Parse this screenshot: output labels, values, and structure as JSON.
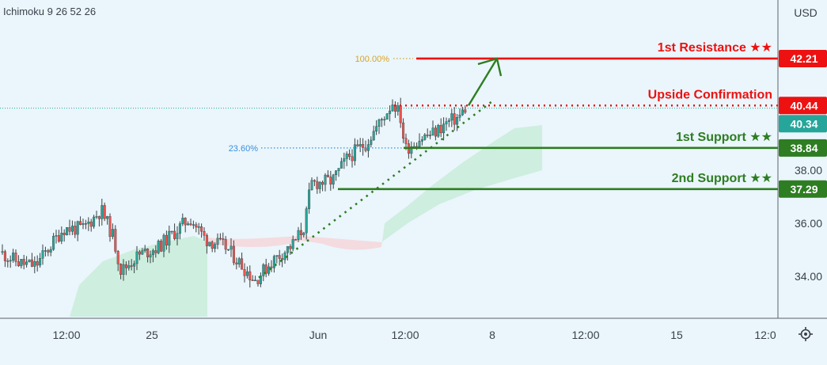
{
  "indicator_label": "Ichimoku 9 26 52 26",
  "currency": "USD",
  "colors": {
    "background": "#eaf6fb",
    "bull": "#26a69a",
    "bear": "#ef5350",
    "resistance": "#ee1111",
    "support": "#2e7d22",
    "price_line": "#26a69a",
    "cloud_bull": "#c9ecd9",
    "cloud_bear": "#f6d4d8",
    "fib_100": "#d8a329",
    "fib_236": "#3b8ede"
  },
  "chart_data": {
    "type": "candlestick",
    "title": "",
    "ylim": [
      32.8,
      45.0
    ],
    "y_ticks": [
      "34.00",
      "36.00",
      "38.00"
    ],
    "x_tick_labels": [
      "12:00",
      "25",
      "Jun",
      "12:00",
      "8",
      "12:00",
      "15",
      "12:0"
    ],
    "price_start": 34.9,
    "price_end": 40.34,
    "levels": [
      {
        "key": "res1",
        "label": "1st Resistance ★★",
        "value": 42.21,
        "badge": "42.21",
        "kind": "resistance"
      },
      {
        "key": "upside",
        "label": "Upside Confirmation",
        "value": 40.44,
        "badge": "40.44",
        "kind": "resistance"
      },
      {
        "key": "sup1",
        "label": "1st Support ★★",
        "value": 38.84,
        "badge": "38.84",
        "kind": "support"
      },
      {
        "key": "sup2",
        "label": "2nd Support ★★",
        "value": 37.29,
        "badge": "37.29",
        "kind": "support"
      }
    ],
    "current_price": {
      "value": 40.34,
      "badge": "40.34"
    },
    "fib": [
      {
        "label": "100.00%",
        "value": 42.21
      },
      {
        "label": "23.60%",
        "value": 38.84
      }
    ],
    "trendline": {
      "start": 33.95,
      "end": 40.6
    },
    "arrow": {
      "from": 40.44,
      "to": 42.21
    }
  }
}
